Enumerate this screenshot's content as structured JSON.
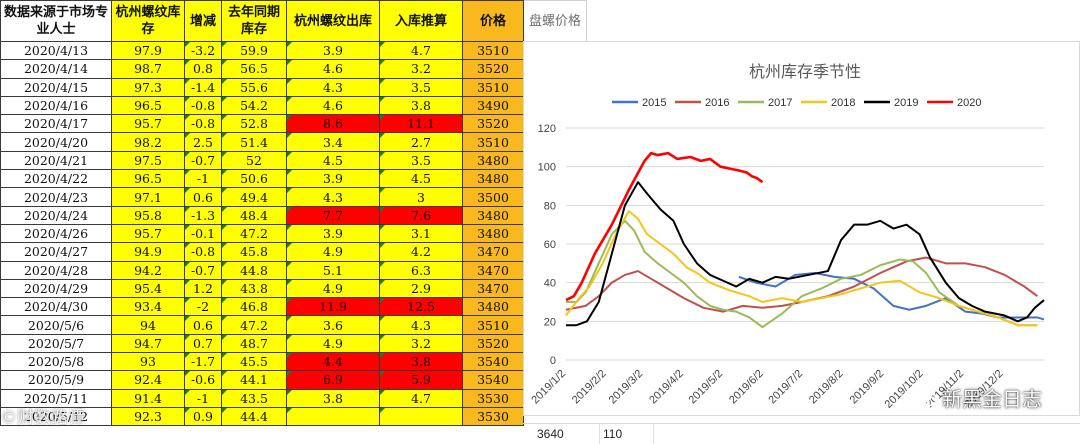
{
  "table": {
    "headers": [
      "数据来源于市场专业人士",
      "杭州螺纹库存",
      "增减",
      "去年同期库存",
      "杭州螺纹出库",
      "入库推算",
      "价格",
      "盘螺价格"
    ],
    "rows": [
      {
        "date": "2020/4/13",
        "stock": "97.9",
        "chg": "-3.2",
        "ly": "59.9",
        "out": "3.9",
        "in": "4.7",
        "price": "3510",
        "hl": false
      },
      {
        "date": "2020/4/14",
        "stock": "98.7",
        "chg": "0.8",
        "ly": "56.5",
        "out": "4.6",
        "in": "3.2",
        "price": "3520",
        "hl": false
      },
      {
        "date": "2020/4/15",
        "stock": "97.3",
        "chg": "-1.4",
        "ly": "55.6",
        "out": "4.3",
        "in": "3.5",
        "price": "3510",
        "hl": false
      },
      {
        "date": "2020/4/16",
        "stock": "96.5",
        "chg": "-0.8",
        "ly": "54.2",
        "out": "4.6",
        "in": "3.8",
        "price": "3490",
        "hl": false
      },
      {
        "date": "2020/4/17",
        "stock": "95.7",
        "chg": "-0.8",
        "ly": "52.8",
        "out": "8.6",
        "in": "11.1",
        "price": "3520",
        "hl": true
      },
      {
        "date": "2020/4/20",
        "stock": "98.2",
        "chg": "2.5",
        "ly": "51.4",
        "out": "3.4",
        "in": "2.7",
        "price": "3510",
        "hl": false
      },
      {
        "date": "2020/4/21",
        "stock": "97.5",
        "chg": "-0.7",
        "ly": "52",
        "out": "4.5",
        "in": "3.5",
        "price": "3480",
        "hl": false
      },
      {
        "date": "2020/4/22",
        "stock": "96.5",
        "chg": "-1",
        "ly": "50.6",
        "out": "3.9",
        "in": "4.5",
        "price": "3480",
        "hl": false
      },
      {
        "date": "2020/4/23",
        "stock": "97.1",
        "chg": "0.6",
        "ly": "49.4",
        "out": "4.3",
        "in": "3",
        "price": "3500",
        "hl": false
      },
      {
        "date": "2020/4/24",
        "stock": "95.8",
        "chg": "-1.3",
        "ly": "48.4",
        "out": "7.7",
        "in": "7.6",
        "price": "3480",
        "hl": true
      },
      {
        "date": "2020/4/26",
        "stock": "95.7",
        "chg": "-0.1",
        "ly": "47.2",
        "out": "3.9",
        "in": "3.1",
        "price": "3480",
        "hl": false
      },
      {
        "date": "2020/4/27",
        "stock": "94.9",
        "chg": "-0.8",
        "ly": "45.8",
        "out": "4.9",
        "in": "4.2",
        "price": "3470",
        "hl": false
      },
      {
        "date": "2020/4/28",
        "stock": "94.2",
        "chg": "-0.7",
        "ly": "44.8",
        "out": "5.1",
        "in": "6.3",
        "price": "3470",
        "hl": false
      },
      {
        "date": "2020/4/29",
        "stock": "95.4",
        "chg": "1.2",
        "ly": "43.8",
        "out": "4.9",
        "in": "2.9",
        "price": "3470",
        "hl": false
      },
      {
        "date": "2020/4/30",
        "stock": "93.4",
        "chg": "-2",
        "ly": "46.8",
        "out": "11.9",
        "in": "12.5",
        "price": "3480",
        "hl": true
      },
      {
        "date": "2020/5/6",
        "stock": "94",
        "chg": "0.6",
        "ly": "47.2",
        "out": "3.6",
        "in": "4.3",
        "price": "3510",
        "hl": false
      },
      {
        "date": "2020/5/7",
        "stock": "94.7",
        "chg": "0.7",
        "ly": "48.7",
        "out": "4.9",
        "in": "3.2",
        "price": "3520",
        "hl": false
      },
      {
        "date": "2020/5/8",
        "stock": "93",
        "chg": "-1.7",
        "ly": "45.5",
        "out": "4.4",
        "in": "3.8",
        "price": "3540",
        "hl": true
      },
      {
        "date": "2020/5/9",
        "stock": "92.4",
        "chg": "-0.6",
        "ly": "44.1",
        "out": "6.9",
        "in": "5.9",
        "price": "3540",
        "hl": true
      },
      {
        "date": "2020/5/11",
        "stock": "91.4",
        "chg": "-1",
        "ly": "43.5",
        "out": "3.8",
        "in": "4.7",
        "price": "3530",
        "hl": false
      },
      {
        "date": "2020/5/12",
        "stock": "92.3",
        "chg": "0.9",
        "ly": "44.4",
        "out": "",
        "in": "",
        "price": "3530",
        "hl": false
      }
    ]
  },
  "bottom_cells": [
    "3640",
    "110"
  ],
  "watermarks": {
    "left": "©财数路谭",
    "right": "新黑金日志"
  },
  "colors": {
    "yellow": "#ffff00",
    "red": "#ff0000",
    "orange": "#f9b91e",
    "flag": "#1a7f3a"
  },
  "chart_data": {
    "type": "line",
    "title": "杭州库存季节性",
    "ylim": [
      0,
      120
    ],
    "yticks": [
      0,
      20,
      40,
      60,
      80,
      100,
      120
    ],
    "xlim_days": [
      0,
      365
    ],
    "xtick_labels": [
      "2019/1/2",
      "2019/2/2",
      "2019/3/2",
      "2019/4/2",
      "2019/5/2",
      "2019/6/2",
      "2019/7/2",
      "2019/8/2",
      "2019/9/2",
      "2019/10/2",
      "2019/11/2",
      "2019/12/2"
    ],
    "grid": true,
    "legend_position": "top",
    "series": [
      {
        "name": "2015",
        "color": "#4472c4",
        "x": [
          132,
          145,
          160,
          175,
          190,
          205,
          220,
          235,
          250,
          262,
          275,
          290,
          305,
          318,
          330,
          340,
          350,
          360,
          365
        ],
        "y": [
          43,
          40,
          38,
          44,
          45,
          43,
          42,
          37,
          28,
          26,
          28,
          32,
          25,
          24,
          22,
          22,
          22,
          22,
          21
        ]
      },
      {
        "name": "2016",
        "color": "#c0504d",
        "x": [
          0,
          15,
          25,
          35,
          45,
          55,
          65,
          75,
          90,
          105,
          120,
          135,
          150,
          165,
          180,
          200,
          220,
          240,
          260,
          275,
          290,
          305,
          320,
          335,
          350,
          360
        ],
        "y": [
          26,
          28,
          33,
          40,
          44,
          46,
          42,
          38,
          32,
          27,
          25,
          28,
          27,
          28,
          30,
          33,
          38,
          45,
          51,
          53,
          50,
          50,
          48,
          44,
          38,
          33
        ]
      },
      {
        "name": "2017",
        "color": "#9bbb59",
        "x": [
          0,
          8,
          15,
          25,
          35,
          45,
          52,
          60,
          70,
          80,
          90,
          100,
          110,
          120,
          130,
          140,
          150,
          165,
          180,
          195,
          210,
          225,
          240,
          255,
          265,
          275,
          285,
          300,
          315,
          330,
          345,
          360
        ],
        "y": [
          30,
          30,
          35,
          50,
          65,
          72,
          67,
          56,
          50,
          45,
          40,
          33,
          28,
          26,
          25,
          22,
          17,
          24,
          33,
          37,
          42,
          44,
          49,
          52,
          51,
          45,
          35,
          28,
          25,
          22,
          18,
          18
        ]
      },
      {
        "name": "2018",
        "color": "#f5c518",
        "x": [
          0,
          10,
          18,
          28,
          38,
          48,
          55,
          62,
          72,
          82,
          92,
          100,
          110,
          125,
          140,
          150,
          165,
          180,
          195,
          210,
          225,
          240,
          255,
          270,
          285,
          300,
          315,
          330,
          345,
          360
        ],
        "y": [
          23,
          32,
          38,
          50,
          65,
          77,
          73,
          65,
          60,
          55,
          48,
          45,
          40,
          36,
          33,
          30,
          32,
          30,
          32,
          34,
          37,
          40,
          41,
          35,
          32,
          28,
          25,
          22,
          18,
          18
        ]
      },
      {
        "name": "2019",
        "color": "#000000",
        "x": [
          0,
          8,
          16,
          25,
          35,
          45,
          55,
          62,
          72,
          82,
          90,
          100,
          110,
          120,
          130,
          140,
          150,
          160,
          170,
          185,
          200,
          210,
          220,
          230,
          240,
          250,
          260,
          270,
          278,
          290,
          300,
          310,
          320,
          335,
          345,
          352,
          358,
          365
        ],
        "y": [
          18,
          18,
          20,
          30,
          55,
          80,
          92,
          86,
          78,
          72,
          60,
          50,
          44,
          41,
          38,
          42,
          40,
          43,
          42,
          44,
          46,
          62,
          70,
          70,
          72,
          68,
          70,
          65,
          53,
          40,
          32,
          28,
          25,
          23,
          20,
          22,
          27,
          31
        ]
      },
      {
        "name": "2020",
        "color": "#ff0000",
        "x": [
          0,
          6,
          12,
          22,
          35,
          48,
          60,
          65,
          70,
          78,
          85,
          95,
          103,
          110,
          118,
          125,
          132,
          138,
          142,
          146,
          150
        ],
        "y": [
          31,
          33,
          40,
          55,
          70,
          88,
          103,
          107,
          106,
          107,
          104,
          105,
          103,
          104,
          100,
          99,
          98,
          97,
          95,
          94,
          92
        ]
      }
    ]
  }
}
